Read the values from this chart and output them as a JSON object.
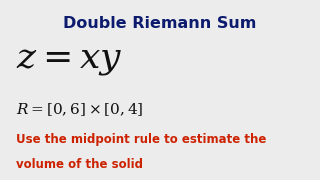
{
  "title": "Double Riemann Sum",
  "title_color": "#0d1b6e",
  "title_fontsize": 11.5,
  "equation": "$z = xy$",
  "equation_fontsize": 26,
  "equation_color": "#111111",
  "region": "$R = [0,6] \\times [0,4]$",
  "region_fontsize": 11,
  "region_color": "#111111",
  "instruction_line1": "Use the midpoint rule to estimate the",
  "instruction_line2": "volume of the solid",
  "instruction_fontsize": 8.5,
  "instruction_color": "#cc2200",
  "background_color": "#ececec"
}
